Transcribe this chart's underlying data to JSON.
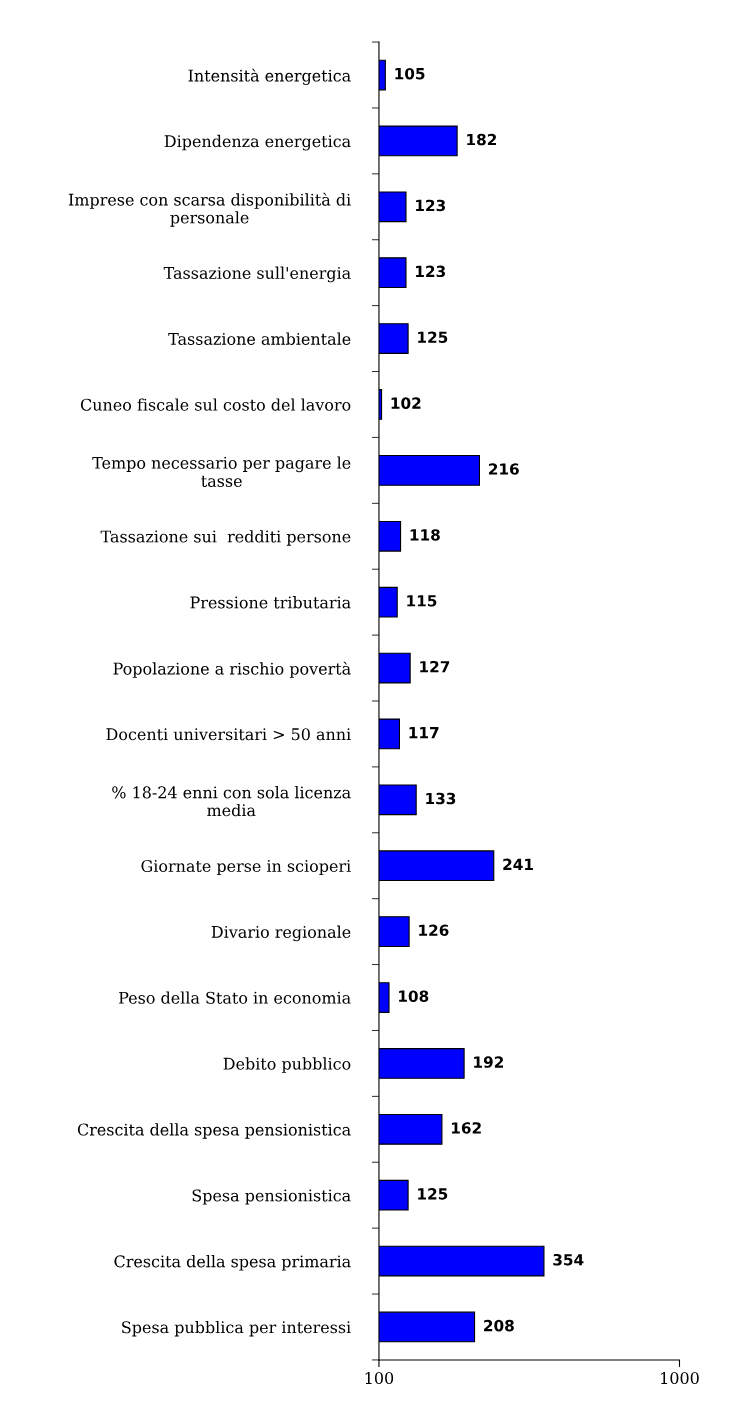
{
  "chart_data": {
    "type": "bar",
    "orientation": "horizontal",
    "log": "x",
    "categories": [
      "Intensità energetica",
      "Dipendenza energetica",
      "Imprese con scarsa disponibilità di\npersonale",
      "Tassazione sull'energia",
      "Tassazione ambientale",
      "Cuneo fiscale sul costo del lavoro",
      "Tempo necessario per pagare le\ntasse",
      "Tassazione sui  redditi persone",
      "Pressione tributaria",
      "Popolazione a rischio povertà",
      "Docenti universitari > 50 anni",
      "% 18-24 enni con sola licenza\nmedia",
      "Giornate perse in scioperi",
      "Divario regionale",
      "Peso della Stato in economia",
      "Debito pubblico",
      "Crescita della spesa pensionistica",
      "Spesa pensionistica",
      "Crescita della spesa primaria",
      "Spesa pubblica per interessi"
    ],
    "values": [
      105,
      182,
      123,
      123,
      125,
      102,
      216,
      118,
      115,
      127,
      117,
      133,
      241,
      126,
      108,
      192,
      162,
      125,
      354,
      208
    ],
    "color": "#0000ff",
    "data_labels": true,
    "xlim": [
      100,
      1000
    ],
    "xticks": [
      100,
      1000
    ],
    "grid": false,
    "legend": false
  }
}
